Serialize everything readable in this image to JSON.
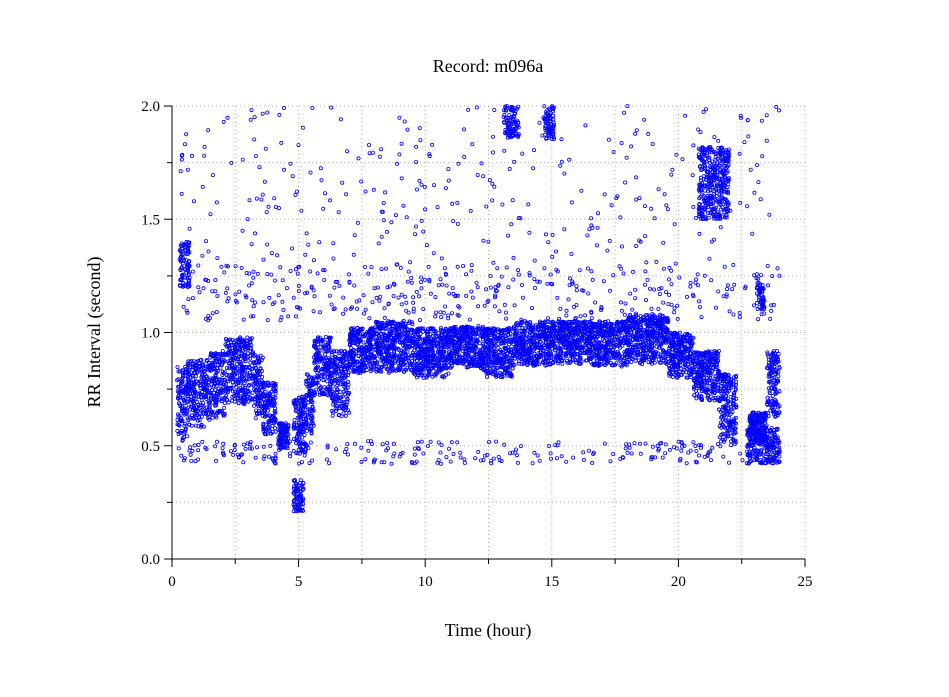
{
  "chart_data": {
    "type": "scatter",
    "title": "Record:  m096a",
    "xlabel": "Time (hour)",
    "ylabel": "RR Interval (second)",
    "xlim": [
      0,
      25
    ],
    "ylim": [
      0,
      2.0
    ],
    "x_ticks": [
      0,
      5,
      10,
      15,
      20,
      25
    ],
    "x_tick_labels": [
      "0",
      "5",
      "10",
      "15",
      "20",
      "25"
    ],
    "y_ticks": [
      0.0,
      0.5,
      1.0,
      1.5,
      2.0
    ],
    "y_tick_labels": [
      "0.0",
      "0.5",
      "1.0",
      "1.5",
      "2.0"
    ],
    "grid": true,
    "marker": "open-circle",
    "color": "#0000ff",
    "bands": [
      {
        "x": [
          0.2,
          0.6
        ],
        "y": [
          0.52,
          0.85
        ]
      },
      {
        "x": [
          0.6,
          1.5
        ],
        "y": [
          0.58,
          0.88
        ]
      },
      {
        "x": [
          1.5,
          2.1
        ],
        "y": [
          0.62,
          0.92
        ]
      },
      {
        "x": [
          2.1,
          3.2
        ],
        "y": [
          0.68,
          0.98
        ]
      },
      {
        "x": [
          3.2,
          3.6
        ],
        "y": [
          0.62,
          0.9
        ]
      },
      {
        "x": [
          3.6,
          4.1
        ],
        "y": [
          0.55,
          0.78
        ]
      },
      {
        "x": [
          4.2,
          4.6
        ],
        "y": [
          0.48,
          0.6
        ]
      },
      {
        "x": [
          4.8,
          5.3
        ],
        "y": [
          0.46,
          0.72
        ]
      },
      {
        "x": [
          5.3,
          5.6
        ],
        "y": [
          0.55,
          0.82
        ]
      },
      {
        "x": [
          5.6,
          6.3
        ],
        "y": [
          0.72,
          0.98
        ]
      },
      {
        "x": [
          6.3,
          7.0
        ],
        "y": [
          0.62,
          0.92
        ]
      },
      {
        "x": [
          7.0,
          8.0
        ],
        "y": [
          0.82,
          1.02
        ]
      },
      {
        "x": [
          8.0,
          9.5
        ],
        "y": [
          0.82,
          1.05
        ]
      },
      {
        "x": [
          9.5,
          11.0
        ],
        "y": [
          0.8,
          1.02
        ]
      },
      {
        "x": [
          11.0,
          12.3
        ],
        "y": [
          0.84,
          1.03
        ]
      },
      {
        "x": [
          12.3,
          13.5
        ],
        "y": [
          0.8,
          1.02
        ]
      },
      {
        "x": [
          13.5,
          15.0
        ],
        "y": [
          0.85,
          1.05
        ]
      },
      {
        "x": [
          15.0,
          16.5
        ],
        "y": [
          0.86,
          1.05
        ]
      },
      {
        "x": [
          16.5,
          18.0
        ],
        "y": [
          0.85,
          1.05
        ]
      },
      {
        "x": [
          18.0,
          19.6
        ],
        "y": [
          0.86,
          1.08
        ]
      },
      {
        "x": [
          19.6,
          20.6
        ],
        "y": [
          0.8,
          1.0
        ]
      },
      {
        "x": [
          20.6,
          21.6
        ],
        "y": [
          0.7,
          0.92
        ]
      },
      {
        "x": [
          21.6,
          22.3
        ],
        "y": [
          0.52,
          0.82
        ]
      },
      {
        "x": [
          22.8,
          23.5
        ],
        "y": [
          0.52,
          0.65
        ]
      },
      {
        "x": [
          23.5,
          24.0
        ],
        "y": [
          0.62,
          0.92
        ]
      }
    ],
    "clusters": [
      {
        "x": [
          13.1,
          13.7
        ],
        "y": [
          1.86,
          2.0
        ]
      },
      {
        "x": [
          14.7,
          15.1
        ],
        "y": [
          1.85,
          2.0
        ]
      },
      {
        "x": [
          20.8,
          22.0
        ],
        "y": [
          1.5,
          1.82
        ]
      },
      {
        "x": [
          23.1,
          23.4
        ],
        "y": [
          1.1,
          1.22
        ]
      },
      {
        "x": [
          0.3,
          0.7
        ],
        "y": [
          1.2,
          1.4
        ]
      },
      {
        "x": [
          22.7,
          24.0
        ],
        "y": [
          0.42,
          0.58
        ]
      },
      {
        "x": [
          4.8,
          5.2
        ],
        "y": [
          0.2,
          0.35
        ]
      }
    ],
    "outlier_bands": [
      {
        "x": [
          0.2,
          24.0
        ],
        "y": [
          0.42,
          0.52
        ]
      },
      {
        "x": [
          0.2,
          24.0
        ],
        "y": [
          1.05,
          1.3
        ]
      },
      {
        "x": [
          0.2,
          24.0
        ],
        "y": [
          1.3,
          2.0
        ]
      }
    ]
  }
}
